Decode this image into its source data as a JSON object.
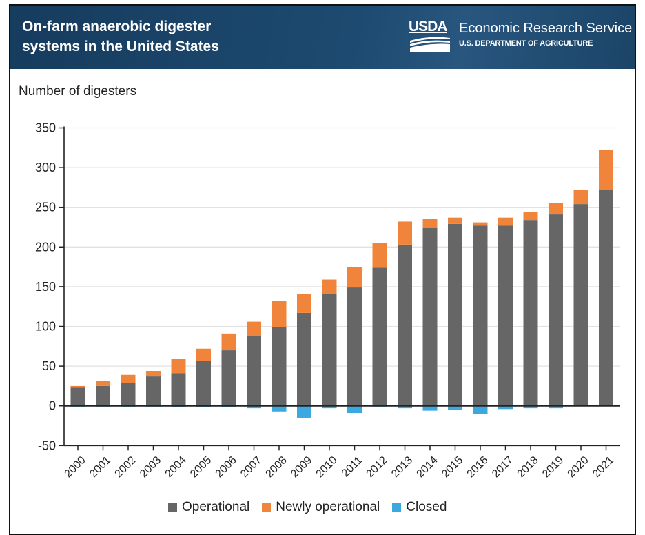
{
  "header": {
    "title": "On-farm anaerobic digester systems in the United States",
    "logo_text": "USDA",
    "agency": "Economic Research Service",
    "department": "U.S. DEPARTMENT OF AGRICULTURE"
  },
  "colors": {
    "operational": "#666666",
    "newly_operational": "#ef843a",
    "closed": "#3ba9e0",
    "header_bg": "#1a4467"
  },
  "chart_data": {
    "type": "bar",
    "stacked": true,
    "title": "On-farm anaerobic digester systems in the United States",
    "xlabel": "",
    "ylabel": "Number of digesters",
    "ylim": [
      -50,
      350
    ],
    "yticks": [
      350,
      300,
      250,
      200,
      150,
      100,
      50,
      0,
      -50
    ],
    "grid": true,
    "legend_position": "bottom-center",
    "categories": [
      "2000",
      "2001",
      "2002",
      "2003",
      "2004",
      "2005",
      "2006",
      "2007",
      "2008",
      "2009",
      "2010",
      "2011",
      "2012",
      "2013",
      "2014",
      "2015",
      "2016",
      "2017",
      "2018",
      "2019",
      "2020",
      "2021"
    ],
    "series": [
      {
        "name": "Operational",
        "values": [
          23,
          25,
          29,
          37,
          41,
          57,
          70,
          88,
          99,
          117,
          141,
          149,
          174,
          203,
          224,
          229,
          227,
          227,
          234,
          241,
          254,
          272
        ]
      },
      {
        "name": "Newly operational",
        "values": [
          2,
          6,
          10,
          7,
          18,
          15,
          21,
          18,
          33,
          24,
          18,
          26,
          31,
          29,
          11,
          8,
          4,
          10,
          10,
          14,
          18,
          50
        ]
      },
      {
        "name": "Closed",
        "values": [
          -1,
          -1,
          -1,
          -1,
          -2,
          -2,
          -2,
          -3,
          -7,
          -15,
          -3,
          -9,
          -1,
          -3,
          -6,
          -5,
          -10,
          -4,
          -3,
          -3,
          0,
          0
        ]
      }
    ]
  },
  "legend": {
    "items": [
      {
        "label": "Operational"
      },
      {
        "label": "Newly operational"
      },
      {
        "label": "Closed"
      }
    ]
  }
}
